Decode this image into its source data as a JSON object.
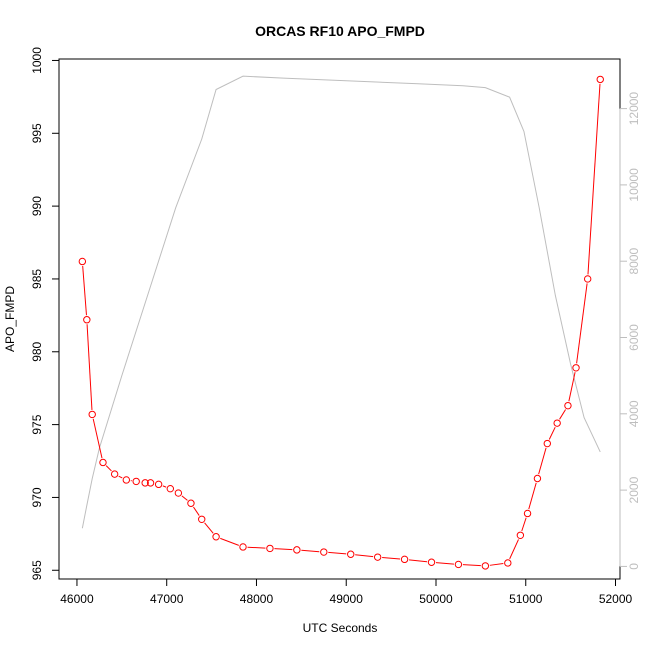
{
  "chart_data": {
    "type": "line",
    "title": "ORCAS RF10 APO_FMPD",
    "xlabel": "UTC Seconds",
    "ylabel": "APO_FMPD",
    "xlim": [
      45800,
      52050
    ],
    "ylim": [
      964.4,
      1000.1
    ],
    "y2lim": [
      -330,
      13300
    ],
    "grid": false,
    "x_ticks": [
      46000,
      47000,
      48000,
      49000,
      50000,
      51000,
      52000
    ],
    "y_ticks": [
      965,
      970,
      975,
      980,
      985,
      990,
      995,
      1000
    ],
    "y2_ticks": [
      0,
      2000,
      4000,
      6000,
      8000,
      10000,
      12000
    ],
    "series": [
      {
        "axis": "left",
        "color": "#ff0000",
        "marker": "open-circle",
        "x": [
          46060,
          46110,
          46170,
          46290,
          46420,
          46550,
          46660,
          46760,
          46820,
          46910,
          47040,
          47130,
          47270,
          47390,
          47550,
          47850,
          48150,
          48450,
          48750,
          49050,
          49350,
          49650,
          49950,
          50250,
          50550,
          50800,
          50940,
          51020,
          51130,
          51240,
          51350,
          51470,
          51560,
          51690,
          51830
        ],
        "values": [
          986.2,
          982.2,
          975.7,
          972.4,
          971.6,
          971.2,
          971.1,
          971.0,
          971.0,
          970.9,
          970.6,
          970.3,
          969.6,
          968.5,
          967.3,
          966.6,
          966.5,
          966.4,
          966.25,
          966.1,
          965.9,
          965.75,
          965.55,
          965.4,
          965.3,
          965.5,
          967.4,
          968.9,
          971.3,
          973.7,
          975.1,
          976.3,
          978.9,
          985.0,
          998.7
        ]
      },
      {
        "axis": "right",
        "color": "#bebebe",
        "marker": "none",
        "x": [
          46060,
          46110,
          46170,
          46250,
          46500,
          46800,
          47100,
          47390,
          47550,
          47850,
          48300,
          48800,
          49300,
          49800,
          50300,
          50550,
          50820,
          50980,
          51150,
          51330,
          51500,
          51650,
          51830
        ],
        "values": [
          1000,
          1600,
          2300,
          3100,
          5000,
          7200,
          9400,
          11200,
          12500,
          12850,
          12800,
          12750,
          12700,
          12650,
          12600,
          12550,
          12300,
          11400,
          9400,
          7100,
          5300,
          3900,
          3000
        ]
      }
    ]
  }
}
